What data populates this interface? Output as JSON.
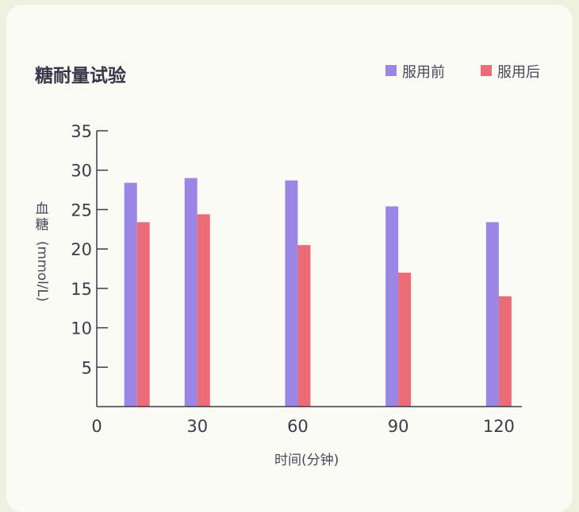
{
  "chart_data": {
    "type": "bar",
    "title": "糖耐量试验",
    "xlabel": "时间(分钟)",
    "ylabel_chars": [
      "血",
      "糖"
    ],
    "ylabel_unit": "(mmol/L)",
    "x_ticks": [
      0,
      30,
      60,
      90,
      120
    ],
    "x_range": [
      0,
      125
    ],
    "y_ticks": [
      5,
      10,
      15,
      20,
      25,
      30,
      35
    ],
    "ylim": [
      0,
      35
    ],
    "legend_position": "top-right",
    "x": [
      12,
      30,
      60,
      90,
      120
    ],
    "series": [
      {
        "name": "服用前",
        "color": "#9b86e6",
        "values": [
          28.4,
          29,
          28.7,
          25.4,
          23.4
        ]
      },
      {
        "name": "服用后",
        "color": "#eb6b77",
        "values": [
          23.4,
          24.4,
          20.5,
          17,
          14
        ]
      }
    ],
    "grid": false
  }
}
